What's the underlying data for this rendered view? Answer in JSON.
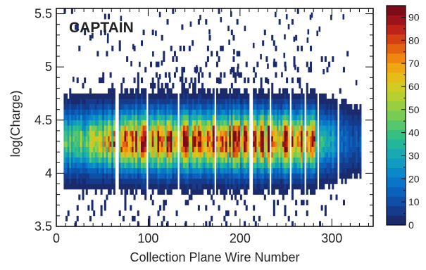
{
  "chart_data": {
    "type": "heatmap",
    "title": "CAPTAIN",
    "xlabel": "Collection Plane Wire Number",
    "ylabel": "log(Charge)",
    "xlim": [
      0,
      345
    ],
    "ylim": [
      3.5,
      5.55
    ],
    "x_ticks": [
      0,
      100,
      200,
      300
    ],
    "x_tick_labels": [
      "0",
      "100",
      "200",
      "300"
    ],
    "y_ticks": [
      3.5,
      4,
      4.5,
      5,
      5.5
    ],
    "y_tick_labels": [
      "3.5",
      "4",
      "4.5",
      "5",
      "5.5"
    ],
    "colorbar": {
      "min": 0,
      "max": 95,
      "ticks": [
        0,
        10,
        20,
        30,
        40,
        50,
        60,
        70,
        80,
        90
      ],
      "tick_labels": [
        "0",
        "10",
        "20",
        "30",
        "40",
        "50",
        "60",
        "70",
        "80",
        "90"
      ]
    },
    "palette": [
      "#1a2a6c",
      "#143b8c",
      "#0f4fa8",
      "#0b62bd",
      "#0a75c8",
      "#0b88c9",
      "#109bc0",
      "#18aab0",
      "#23b69b",
      "#38c083",
      "#56c76c",
      "#77cc55",
      "#98cf40",
      "#b7d02f",
      "#d2cb22",
      "#e6bd18",
      "#f0a612",
      "#ee860f",
      "#e4630f",
      "#d34012",
      "#bb2416",
      "#9c131a",
      "#7e0b18"
    ],
    "grid": false,
    "legend": "none",
    "x_range_filled": [
      8,
      330
    ],
    "band_center": 4.3,
    "dead_wires": [
      65,
      67,
      98,
      133,
      173,
      210,
      213,
      232,
      254,
      270,
      284,
      306
    ],
    "dense_region_x": [
      95,
      270
    ],
    "peak_value": 92
  }
}
